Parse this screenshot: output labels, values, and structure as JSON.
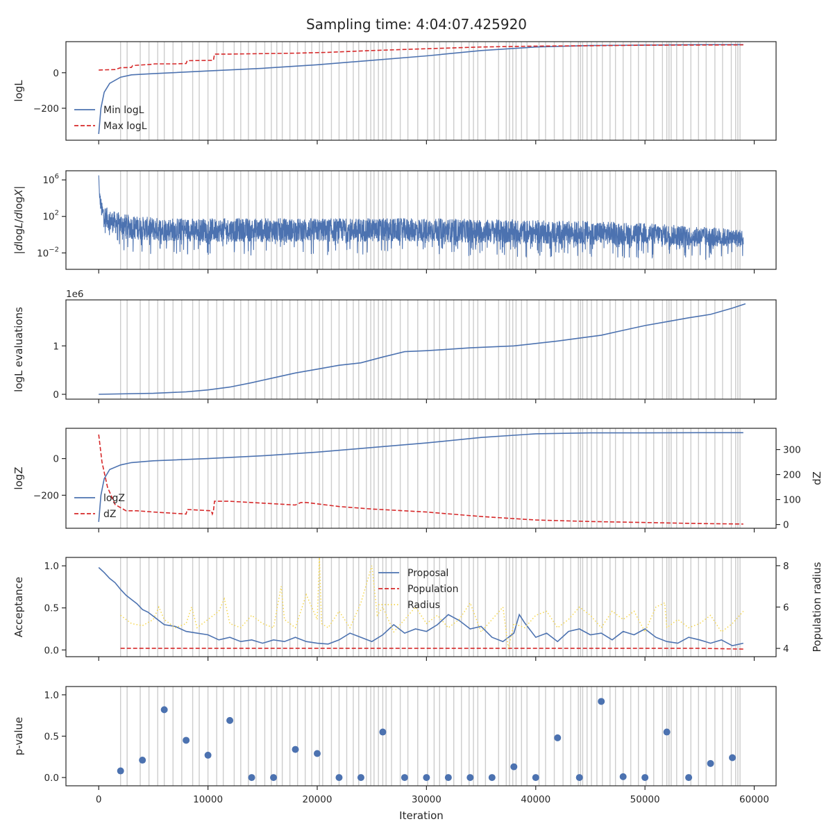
{
  "figure": {
    "title": "Sampling time: 4:04:07.425920",
    "xlabel": "Iteration",
    "xlim": [
      -3000,
      62000
    ],
    "xticks": [
      0,
      10000,
      20000,
      30000,
      40000,
      50000,
      60000
    ],
    "xtick_labels": [
      "0",
      "10000",
      "20000",
      "30000",
      "40000",
      "50000",
      "60000"
    ],
    "colors": {
      "blue": "#4c72b0",
      "red": "#d62728",
      "yellow": "#f5d547",
      "vline": "#cccccc",
      "axis": "#262626"
    }
  },
  "chart_data": [
    {
      "type": "line",
      "panel": "logL",
      "ylabel": "logL",
      "ylim": [
        -380,
        175
      ],
      "yticks": [
        -200,
        0
      ],
      "ytick_labels": [
        "−200",
        "0"
      ],
      "legend": {
        "position": "lower-left",
        "entries": [
          "Min logL",
          "Max logL"
        ]
      },
      "series": [
        {
          "name": "Min logL",
          "style": "solid",
          "color": "#4c72b0",
          "x": [
            0,
            200,
            500,
            1000,
            2000,
            3000,
            5000,
            10000,
            15000,
            20000,
            25000,
            30000,
            35000,
            40000,
            45000,
            50000,
            55000,
            59000
          ],
          "y": [
            -345,
            -200,
            -110,
            -60,
            -25,
            -12,
            -5,
            10,
            25,
            45,
            70,
            95,
            125,
            145,
            153,
            156,
            158,
            158
          ]
        },
        {
          "name": "Max logL",
          "style": "dashed",
          "color": "#d62728",
          "x": [
            0,
            1500,
            2000,
            3000,
            3100,
            3500,
            5000,
            5100,
            7000,
            8000,
            8100,
            10500,
            10600,
            12000,
            18000,
            21000,
            25000,
            30000,
            35000,
            40000,
            45000,
            50000,
            55000,
            59000
          ],
          "y": [
            15,
            18,
            28,
            30,
            40,
            42,
            48,
            50,
            50,
            52,
            68,
            70,
            105,
            105,
            110,
            115,
            125,
            135,
            145,
            150,
            152,
            155,
            156,
            157
          ]
        }
      ]
    },
    {
      "type": "line",
      "panel": "dlogL/dlogX",
      "ylabel": "|dlogL/dlogX|",
      "yscale": "log",
      "ylim_log10": [
        -3.8,
        7
      ],
      "yticks_log10": [
        -2,
        2,
        6
      ],
      "ytick_labels": [
        "10",
        "10",
        "10"
      ],
      "ytick_exponents": [
        "−2",
        "2",
        "6"
      ],
      "series": [
        {
          "name": "",
          "style": "noisy",
          "color": "#4c72b0",
          "x": [
            0,
            100,
            300,
            1000,
            3000,
            5000,
            10000,
            20000,
            30000,
            35000,
            40000,
            45000,
            50000,
            55000,
            59000
          ],
          "center_log10": [
            6.5,
            4,
            2.5,
            1.5,
            0.8,
            0.6,
            0.5,
            0.5,
            0.5,
            0.4,
            0.3,
            0.2,
            0.1,
            -0.2,
            -0.4
          ],
          "spread_log10": [
            0,
            0.8,
            1.0,
            1.2,
            1.3,
            1.3,
            1.3,
            1.3,
            1.3,
            1.3,
            1.3,
            1.3,
            1.2,
            1.1,
            1.0
          ]
        }
      ]
    },
    {
      "type": "line",
      "panel": "logL evaluations",
      "ylabel": "logL evaluations",
      "offset_text": "1e6",
      "ylim": [
        -0.1,
        1.95
      ],
      "yticks": [
        0,
        1
      ],
      "ytick_labels": [
        "0",
        "1"
      ],
      "series": [
        {
          "name": "",
          "style": "solid",
          "color": "#4c72b0",
          "x": [
            0,
            5000,
            8000,
            10000,
            12000,
            14000,
            16000,
            18000,
            20000,
            22000,
            24000,
            26000,
            28000,
            30000,
            32000,
            34000,
            36000,
            38000,
            40000,
            42000,
            44000,
            46000,
            48000,
            50000,
            52000,
            54000,
            56000,
            58000,
            59200
          ],
          "y": [
            0.0,
            0.02,
            0.05,
            0.09,
            0.15,
            0.24,
            0.34,
            0.44,
            0.52,
            0.6,
            0.65,
            0.77,
            0.88,
            0.9,
            0.93,
            0.96,
            0.98,
            1.0,
            1.05,
            1.1,
            1.16,
            1.22,
            1.32,
            1.42,
            1.5,
            1.58,
            1.65,
            1.78,
            1.87
          ]
        }
      ]
    },
    {
      "type": "line",
      "panel": "logZ",
      "ylabel": "logZ",
      "ylabel_right": "dZ",
      "ylim": [
        -380,
        165
      ],
      "yticks": [
        -200,
        0
      ],
      "ytick_labels": [
        "−200",
        "0"
      ],
      "ylim_right": [
        -15,
        385
      ],
      "yticks_right": [
        0,
        100,
        200,
        300
      ],
      "ytick_labels_right": [
        "0",
        "100",
        "200",
        "300"
      ],
      "legend": {
        "position": "lower-left",
        "entries": [
          "logZ",
          "dZ"
        ]
      },
      "series": [
        {
          "name": "logZ",
          "style": "solid",
          "color": "#4c72b0",
          "axis": "left",
          "x": [
            0,
            200,
            500,
            1000,
            2000,
            3000,
            5000,
            10000,
            15000,
            20000,
            25000,
            30000,
            35000,
            40000,
            45000,
            50000,
            55000,
            59000
          ],
          "y": [
            -345,
            -200,
            -110,
            -60,
            -35,
            -22,
            -12,
            0,
            15,
            35,
            60,
            85,
            115,
            135,
            140,
            140,
            141,
            141
          ]
        },
        {
          "name": "dZ",
          "style": "dashed",
          "color": "#d62728",
          "axis": "right",
          "x": [
            0,
            300,
            800,
            1500,
            2500,
            3500,
            5000,
            8000,
            8100,
            10300,
            10400,
            10500,
            10600,
            12000,
            18000,
            18500,
            19000,
            22000,
            25000,
            30000,
            35000,
            40000,
            45000,
            50000,
            55000,
            59000
          ],
          "y": [
            360,
            250,
            150,
            80,
            55,
            55,
            50,
            42,
            60,
            55,
            42,
            55,
            93,
            93,
            78,
            88,
            88,
            72,
            62,
            50,
            32,
            18,
            12,
            8,
            4,
            2
          ]
        }
      ]
    },
    {
      "type": "line",
      "panel": "Acceptance",
      "ylabel": "Acceptance",
      "ylabel_right": "Population radius",
      "ylim": [
        -0.08,
        1.1
      ],
      "yticks": [
        0.0,
        0.5,
        1.0
      ],
      "ytick_labels": [
        "0.0",
        "0.5",
        "1.0"
      ],
      "ylim_right": [
        3.6,
        8.4
      ],
      "yticks_right": [
        4,
        6,
        8
      ],
      "ytick_labels_right": [
        "4",
        "6",
        "8"
      ],
      "legend": {
        "position": "top-center",
        "entries": [
          "Proposal",
          "Population",
          "Radius"
        ]
      },
      "series": [
        {
          "name": "Proposal",
          "style": "solid",
          "color": "#4c72b0",
          "axis": "left",
          "x": [
            0,
            500,
            1000,
            1500,
            2000,
            2500,
            3000,
            3500,
            4000,
            4500,
            5000,
            6000,
            7000,
            8000,
            9000,
            10000,
            11000,
            12000,
            13000,
            14000,
            15000,
            16000,
            17000,
            18000,
            19000,
            20000,
            21000,
            22000,
            23000,
            24000,
            25000,
            26000,
            27000,
            28000,
            29000,
            30000,
            31000,
            32000,
            33000,
            34000,
            35000,
            36000,
            37000,
            38000,
            38500,
            39000,
            40000,
            41000,
            42000,
            43000,
            44000,
            45000,
            46000,
            47000,
            48000,
            49000,
            50000,
            51000,
            52000,
            53000,
            54000,
            55000,
            56000,
            57000,
            58000,
            59000
          ],
          "y": [
            0.98,
            0.92,
            0.85,
            0.8,
            0.72,
            0.65,
            0.6,
            0.55,
            0.48,
            0.45,
            0.4,
            0.3,
            0.28,
            0.22,
            0.2,
            0.18,
            0.12,
            0.15,
            0.1,
            0.12,
            0.08,
            0.12,
            0.1,
            0.15,
            0.1,
            0.08,
            0.07,
            0.12,
            0.2,
            0.15,
            0.1,
            0.18,
            0.3,
            0.2,
            0.25,
            0.22,
            0.3,
            0.42,
            0.35,
            0.25,
            0.28,
            0.15,
            0.1,
            0.2,
            0.42,
            0.32,
            0.15,
            0.2,
            0.1,
            0.22,
            0.25,
            0.18,
            0.2,
            0.12,
            0.22,
            0.18,
            0.25,
            0.15,
            0.1,
            0.08,
            0.15,
            0.12,
            0.08,
            0.12,
            0.05,
            0.08
          ]
        },
        {
          "name": "Population",
          "style": "dashed",
          "color": "#d62728",
          "axis": "left",
          "x": [
            2000,
            5000,
            10000,
            15000,
            20000,
            25000,
            30000,
            35000,
            40000,
            45000,
            50000,
            55000,
            59000
          ],
          "y": [
            0.02,
            0.02,
            0.02,
            0.02,
            0.02,
            0.02,
            0.02,
            0.02,
            0.02,
            0.02,
            0.02,
            0.02,
            0.01
          ]
        },
        {
          "name": "Radius",
          "style": "dotted",
          "color": "#f5d547",
          "axis": "right",
          "x": [
            2000,
            3000,
            4000,
            5000,
            5500,
            6000,
            7000,
            8000,
            8500,
            9000,
            10000,
            11000,
            11500,
            12000,
            13000,
            14000,
            15000,
            16000,
            16700,
            17000,
            18000,
            19000,
            20000,
            20200,
            20400,
            21000,
            22000,
            23000,
            24000,
            25000,
            25500,
            26000,
            27000,
            28000,
            29000,
            30000,
            31000,
            32000,
            33000,
            34000,
            35000,
            36000,
            37000,
            37500,
            38000,
            39000,
            40000,
            41000,
            42000,
            43000,
            44000,
            45000,
            46000,
            47000,
            48000,
            49000,
            50000,
            51000,
            51800,
            52000,
            53000,
            54000,
            55000,
            56000,
            57000,
            58000,
            59000
          ],
          "y": [
            5.6,
            5.2,
            5.1,
            5.4,
            6.0,
            5.4,
            5.0,
            5.2,
            6.0,
            5.0,
            5.4,
            5.8,
            6.4,
            5.2,
            5.0,
            5.6,
            5.2,
            5.0,
            7.0,
            5.4,
            5.0,
            6.6,
            5.4,
            8.4,
            5.2,
            5.0,
            5.8,
            5.0,
            6.2,
            8.0,
            5.6,
            6.0,
            4.8,
            5.4,
            6.0,
            5.2,
            5.6,
            5.0,
            5.4,
            6.2,
            4.8,
            5.4,
            6.0,
            4.0,
            5.2,
            5.0,
            5.6,
            5.8,
            5.0,
            5.4,
            6.0,
            5.6,
            5.0,
            5.8,
            5.4,
            5.8,
            4.8,
            6.0,
            6.2,
            5.0,
            5.4,
            5.0,
            5.2,
            5.6,
            4.8,
            5.2,
            5.8
          ]
        }
      ]
    },
    {
      "type": "scatter",
      "panel": "p-value",
      "ylabel": "p-value",
      "ylim": [
        -0.1,
        1.1
      ],
      "yticks": [
        0.0,
        0.5,
        1.0
      ],
      "ytick_labels": [
        "0.0",
        "0.5",
        "1.0"
      ],
      "series": [
        {
          "name": "",
          "color": "#4c72b0",
          "x": [
            2000,
            4000,
            6000,
            8000,
            10000,
            12000,
            14000,
            16000,
            18000,
            20000,
            22000,
            24000,
            26000,
            28000,
            30000,
            32000,
            34000,
            36000,
            38000,
            40000,
            42000,
            44000,
            46000,
            48000,
            50000,
            52000,
            54000,
            56000,
            58000
          ],
          "y": [
            0.08,
            0.21,
            0.82,
            0.45,
            0.27,
            0.69,
            0.0,
            0.0,
            0.34,
            0.29,
            0.0,
            0.0,
            0.55,
            0.0,
            0.0,
            0.0,
            0.0,
            0.0,
            0.13,
            0.0,
            0.48,
            0.0,
            0.92,
            0.01,
            0.0,
            0.55,
            0.0,
            0.17,
            0.24
          ]
        }
      ]
    }
  ],
  "vlines_x": [
    2000,
    2600,
    3800,
    4600,
    5400,
    6000,
    6800,
    7600,
    8600,
    9200,
    10000,
    10800,
    11400,
    12400,
    13000,
    13700,
    14400,
    15200,
    15800,
    16300,
    16800,
    17500,
    18200,
    18900,
    19500,
    20200,
    20500,
    21300,
    22000,
    22700,
    23300,
    23800,
    24500,
    24900,
    25200,
    25600,
    26000,
    26300,
    26800,
    27600,
    28300,
    29200,
    30100,
    30700,
    31200,
    31800,
    32500,
    33200,
    33900,
    34300,
    34700,
    35400,
    36600,
    37300,
    37600,
    37900,
    38200,
    38700,
    39200,
    40300,
    40900,
    41700,
    42500,
    43200,
    43900,
    44100,
    44300,
    44700,
    45100,
    45600,
    46100,
    46800,
    47300,
    48000,
    48700,
    49400,
    50100,
    50800,
    51600,
    52000,
    52200,
    52400,
    52900,
    53500,
    54200,
    54900,
    55600,
    56400,
    57100,
    57900,
    58300,
    58500,
    58700
  ]
}
